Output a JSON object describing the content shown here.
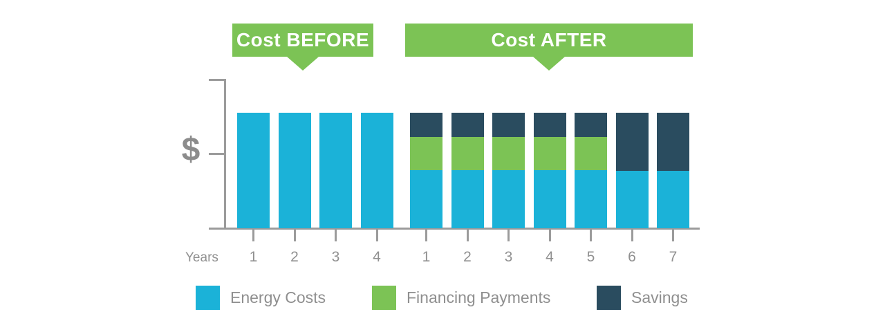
{
  "colors": {
    "energy_blue": "#1bb2d8",
    "financing_green": "#7cc355",
    "savings_navy": "#2a4c5f",
    "banner_green": "#7cc355",
    "axis_gray": "#9b9b9b",
    "text_gray": "#8f8f8f"
  },
  "banners": {
    "before_label": "Cost BEFORE",
    "after_label": "Cost AFTER"
  },
  "y_axis": {
    "label": "$"
  },
  "x_axis": {
    "label": "Years"
  },
  "legend": [
    {
      "key": "energy",
      "label": "Energy Costs",
      "color": "#1bb2d8"
    },
    {
      "key": "financing",
      "label": "Financing Payments",
      "color": "#7cc355"
    },
    {
      "key": "savings",
      "label": "Savings",
      "color": "#2a4c5f"
    }
  ],
  "chart_data": {
    "type": "bar",
    "stacked": true,
    "xlabel": "Years",
    "ylabel": "$",
    "y_axis_numeric": false,
    "value_note": "relative cost units; each BEFORE bar total = 100",
    "groups": [
      {
        "label": "Cost BEFORE",
        "categories": [
          "1",
          "2",
          "3",
          "4"
        ],
        "series": [
          {
            "key": "energy",
            "name": "Energy Costs",
            "values": [
              100,
              100,
              100,
              100
            ]
          },
          {
            "key": "financing",
            "name": "Financing Payments",
            "values": [
              0,
              0,
              0,
              0
            ]
          },
          {
            "key": "savings",
            "name": "Savings",
            "values": [
              0,
              0,
              0,
              0
            ]
          }
        ]
      },
      {
        "label": "Cost AFTER",
        "categories": [
          "1",
          "2",
          "3",
          "4",
          "5",
          "6",
          "7"
        ],
        "series": [
          {
            "key": "energy",
            "name": "Energy Costs",
            "values": [
              50,
              50,
              50,
              50,
              50,
              50,
              50
            ]
          },
          {
            "key": "financing",
            "name": "Financing Payments",
            "values": [
              29,
              29,
              29,
              29,
              29,
              0,
              0
            ]
          },
          {
            "key": "savings",
            "name": "Savings",
            "values": [
              21,
              21,
              21,
              21,
              21,
              50,
              50
            ]
          }
        ]
      }
    ]
  }
}
